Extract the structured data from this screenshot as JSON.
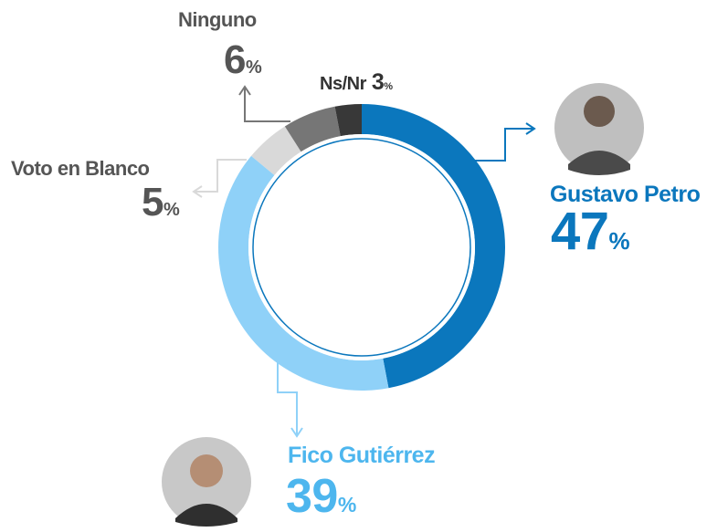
{
  "chart_data": {
    "type": "pie",
    "donut": true,
    "categories": [
      "Gustavo Petro",
      "Fico Gutiérrez",
      "Voto en Blanco",
      "Ninguno",
      "Ns/Nr"
    ],
    "values": [
      47,
      39,
      5,
      6,
      3
    ],
    "value_suffix": "%",
    "colors": [
      "#0b77bd",
      "#8fd1f8",
      "#d9d9d9",
      "#767676",
      "#383838"
    ],
    "label_colors": [
      "#0b77bd",
      "#4db6ee",
      "#555555",
      "#555555",
      "#333333"
    ]
  }
}
